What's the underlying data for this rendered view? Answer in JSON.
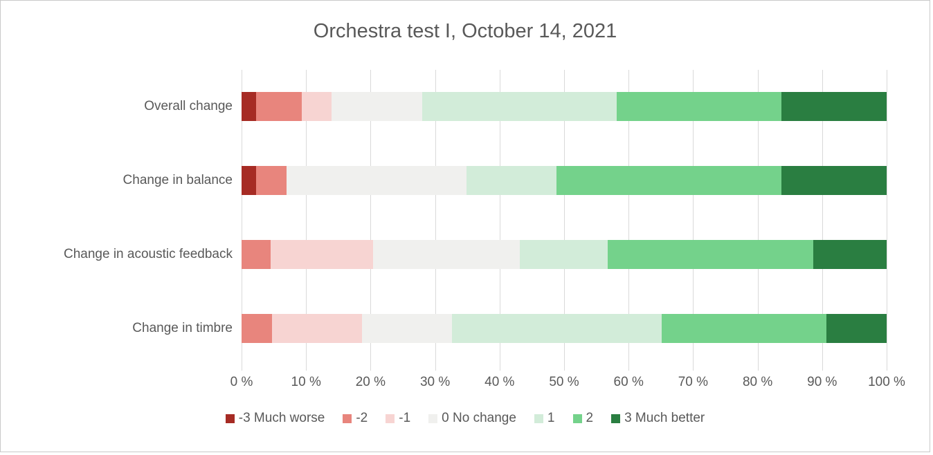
{
  "chart_data": {
    "type": "bar",
    "orientation": "horizontal",
    "stacked": true,
    "percent_stacked": true,
    "title": "Orchestra test I,  October 14, 2021",
    "categories": [
      "Overall change",
      "Change in balance",
      "Change in acoustic feedback",
      "Change in timbre"
    ],
    "series": [
      {
        "name": "-3 Much worse",
        "color": "#a62b24",
        "values": [
          2.3,
          2.3,
          0.0,
          0.0
        ]
      },
      {
        "name": "-2",
        "color": "#e8857d",
        "values": [
          7.0,
          4.7,
          4.5,
          4.7
        ]
      },
      {
        "name": "-1",
        "color": "#f7d4d2",
        "values": [
          4.7,
          0.0,
          15.9,
          14.0
        ]
      },
      {
        "name": "0 No change",
        "color": "#f0f0ee",
        "values": [
          14.0,
          27.9,
          22.7,
          14.0
        ]
      },
      {
        "name": "1",
        "color": "#d2ecd9",
        "values": [
          30.2,
          14.0,
          13.6,
          32.6
        ]
      },
      {
        "name": "2",
        "color": "#74d28b",
        "values": [
          25.6,
          34.9,
          31.8,
          25.6
        ]
      },
      {
        "name": "3 Much better",
        "color": "#2a7e41",
        "values": [
          16.3,
          16.3,
          11.4,
          9.3
        ]
      }
    ],
    "x_axis": {
      "min": 0,
      "max": 100,
      "step": 10,
      "tick_labels": [
        "0 %",
        "10 %",
        "20 %",
        "30 %",
        "40 %",
        "50 %",
        "60 %",
        "70 %",
        "80 %",
        "90 %",
        "100 %"
      ]
    },
    "grid": true,
    "legend_position": "bottom"
  },
  "styles": {
    "text_color": "#595959",
    "gridline_color": "#d9d9d9",
    "figure_border_color": "#c9c9c9",
    "background_color": "#ffffff"
  }
}
